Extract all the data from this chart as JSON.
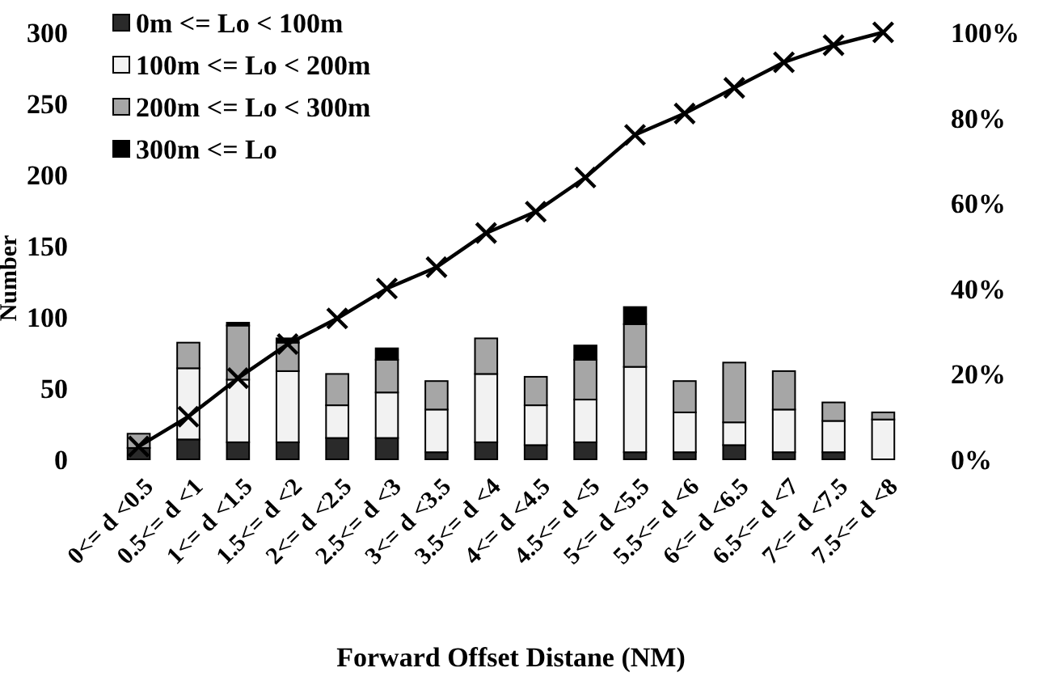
{
  "chart_data": {
    "type": "bar",
    "stacked": true,
    "xlabel": "Forward Offset Distane (NM)",
    "ylabel": "Number",
    "categories": [
      "0<= d <0.5",
      "0.5<= d <1",
      "1<= d <1.5",
      "1.5<= d <2",
      "2<= d <2.5",
      "2.5<= d <3",
      "3<= d <3.5",
      "3.5<= d <4",
      "4<= d <4.5",
      "4.5<= d <5",
      "5<= d <5.5",
      "5.5<= d <6",
      "6<= d <6.5",
      "6.5<= d <7",
      "7<= d <7.5",
      "7.5<= d <8"
    ],
    "series": [
      {
        "name": "0m <= Lo < 100m",
        "color": "#2a2a2a",
        "values": [
          8,
          14,
          12,
          12,
          15,
          15,
          5,
          12,
          10,
          12,
          5,
          5,
          10,
          5,
          5,
          0
        ]
      },
      {
        "name": "100m <= Lo < 200m",
        "color": "#f2f2f2",
        "values": [
          null,
          50,
          44,
          50,
          23,
          32,
          30,
          48,
          28,
          30,
          60,
          28,
          16,
          30,
          22,
          28
        ]
      },
      {
        "name": "200m <= Lo < 300m",
        "color": "#a6a6a6",
        "values": [
          10,
          18,
          38,
          20,
          22,
          23,
          20,
          25,
          20,
          28,
          30,
          22,
          42,
          27,
          13,
          5
        ]
      },
      {
        "name": "300m <= Lo",
        "color": "#000000",
        "values": [
          0,
          0,
          2,
          3,
          0,
          8,
          0,
          0,
          0,
          10,
          12,
          0,
          0,
          0,
          0,
          0
        ]
      },
      {
        "type": "line",
        "axis": "y2",
        "color": "#000000",
        "marker": "cross",
        "values": [
          3,
          10,
          19,
          27,
          33,
          40,
          45,
          53,
          58,
          66,
          76,
          81,
          87,
          93,
          97,
          100
        ]
      }
    ],
    "ylim": [
      0,
      300
    ],
    "yticks": [
      0,
      50,
      100,
      150,
      200,
      250,
      300
    ],
    "y2lim": [
      0,
      100
    ],
    "y2ticks": [
      {
        "value": 0,
        "label": "0%"
      },
      {
        "value": 20,
        "label": "20%"
      },
      {
        "value": 40,
        "label": "40%"
      },
      {
        "value": 60,
        "label": "60%"
      },
      {
        "value": 80,
        "label": "80%"
      },
      {
        "value": 100,
        "label": "100%"
      }
    ],
    "legend": "top left",
    "grid": false
  }
}
